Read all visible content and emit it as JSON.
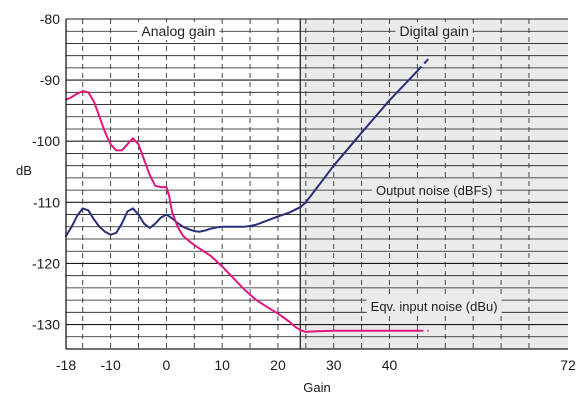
{
  "chart_data": {
    "type": "line",
    "title": "",
    "xlabel": "Gain",
    "ylabel": "dB",
    "xlim": [
      -18,
      72
    ],
    "ylim": [
      -134,
      -80
    ],
    "x_ticks": [
      -18,
      -10,
      0,
      10,
      20,
      30,
      40,
      72
    ],
    "x_tick_labels": [
      "-18",
      "-10",
      "0",
      "10",
      "20",
      "30",
      "40",
      "72"
    ],
    "x_gridlines": [
      -15,
      -10,
      -5,
      0,
      5,
      10,
      15,
      20,
      25,
      30,
      35,
      40,
      45,
      50,
      55,
      60,
      65
    ],
    "y_ticks": [
      -80,
      -90,
      -100,
      -110,
      -120,
      -130
    ],
    "y_tick_labels": [
      "-80",
      "-90",
      "-100",
      "-110",
      "-120",
      "-130"
    ],
    "y_gridline_step": 2,
    "grid": true,
    "regions": [
      {
        "label": "Analog gain",
        "x_range": [
          -18,
          24
        ]
      },
      {
        "label": "Digital gain",
        "x_range": [
          24,
          72
        ],
        "shaded": true,
        "color": "#ebebeb"
      }
    ],
    "series": [
      {
        "name": "Output noise (dBFs)",
        "color": "#2a2f7a",
        "label_x": 48,
        "label_y": -108,
        "solid": [
          [
            -18,
            -115.5
          ],
          [
            -17,
            -114
          ],
          [
            -16,
            -112.2
          ],
          [
            -15,
            -111
          ],
          [
            -14,
            -111.3
          ],
          [
            -13,
            -112.8
          ],
          [
            -12,
            -114
          ],
          [
            -11,
            -114.8
          ],
          [
            -10,
            -115.3
          ],
          [
            -9,
            -115
          ],
          [
            -8,
            -113.5
          ],
          [
            -7,
            -111.5
          ],
          [
            -6,
            -111
          ],
          [
            -5,
            -112
          ],
          [
            -4,
            -113.5
          ],
          [
            -3,
            -114.2
          ],
          [
            -2,
            -113.5
          ],
          [
            -1,
            -112.5
          ],
          [
            0,
            -112
          ],
          [
            1,
            -112.6
          ],
          [
            2,
            -113.4
          ],
          [
            3,
            -114
          ],
          [
            4,
            -114.4
          ],
          [
            5,
            -114.7
          ],
          [
            6,
            -114.8
          ],
          [
            7,
            -114.6
          ],
          [
            8,
            -114.3
          ],
          [
            9,
            -114.1
          ],
          [
            10,
            -114
          ],
          [
            12,
            -114
          ],
          [
            14,
            -114
          ],
          [
            16,
            -113.7
          ],
          [
            18,
            -113
          ],
          [
            20,
            -112.3
          ],
          [
            22,
            -111.7
          ],
          [
            24,
            -110.8
          ],
          [
            25,
            -110
          ],
          [
            26,
            -108.8
          ],
          [
            28,
            -106.4
          ],
          [
            30,
            -104
          ],
          [
            35,
            -98.6
          ],
          [
            40,
            -93.3
          ],
          [
            45,
            -88.5
          ]
        ],
        "dashed": [
          [
            45,
            -88.5
          ],
          [
            47,
            -86.5
          ]
        ]
      },
      {
        "name": "Eqv. input noise (dBu)",
        "color": "#e0187c",
        "label_x": 48,
        "label_y": -127,
        "solid": [
          [
            -18,
            -93.2
          ],
          [
            -17,
            -92.8
          ],
          [
            -16,
            -92.2
          ],
          [
            -15,
            -91.8
          ],
          [
            -14,
            -92
          ],
          [
            -13,
            -93.5
          ],
          [
            -12,
            -96
          ],
          [
            -11,
            -98.5
          ],
          [
            -10,
            -100.5
          ],
          [
            -9,
            -101.5
          ],
          [
            -8,
            -101.5
          ],
          [
            -7,
            -100.5
          ],
          [
            -6,
            -99.5
          ],
          [
            -5,
            -100.5
          ],
          [
            -4,
            -103
          ],
          [
            -3,
            -105.5
          ],
          [
            -2,
            -107.3
          ],
          [
            -1,
            -107.5
          ],
          [
            0,
            -107.5
          ],
          [
            0.5,
            -109
          ],
          [
            1,
            -111.5
          ],
          [
            2,
            -114
          ],
          [
            3,
            -115.5
          ],
          [
            4,
            -116.3
          ],
          [
            5,
            -117
          ],
          [
            6,
            -117.6
          ],
          [
            8,
            -118.8
          ],
          [
            10,
            -120.5
          ],
          [
            12,
            -122.4
          ],
          [
            14,
            -124.3
          ],
          [
            16,
            -125.9
          ],
          [
            18,
            -127.1
          ],
          [
            20,
            -128.2
          ],
          [
            22,
            -129.5
          ],
          [
            23,
            -130.3
          ],
          [
            24,
            -130.9
          ],
          [
            25,
            -131.2
          ],
          [
            27,
            -131.1
          ],
          [
            30,
            -131
          ],
          [
            35,
            -131
          ],
          [
            40,
            -131
          ],
          [
            45,
            -131
          ]
        ],
        "dashed": [
          [
            45,
            -131
          ],
          [
            47,
            -131
          ]
        ]
      }
    ]
  }
}
